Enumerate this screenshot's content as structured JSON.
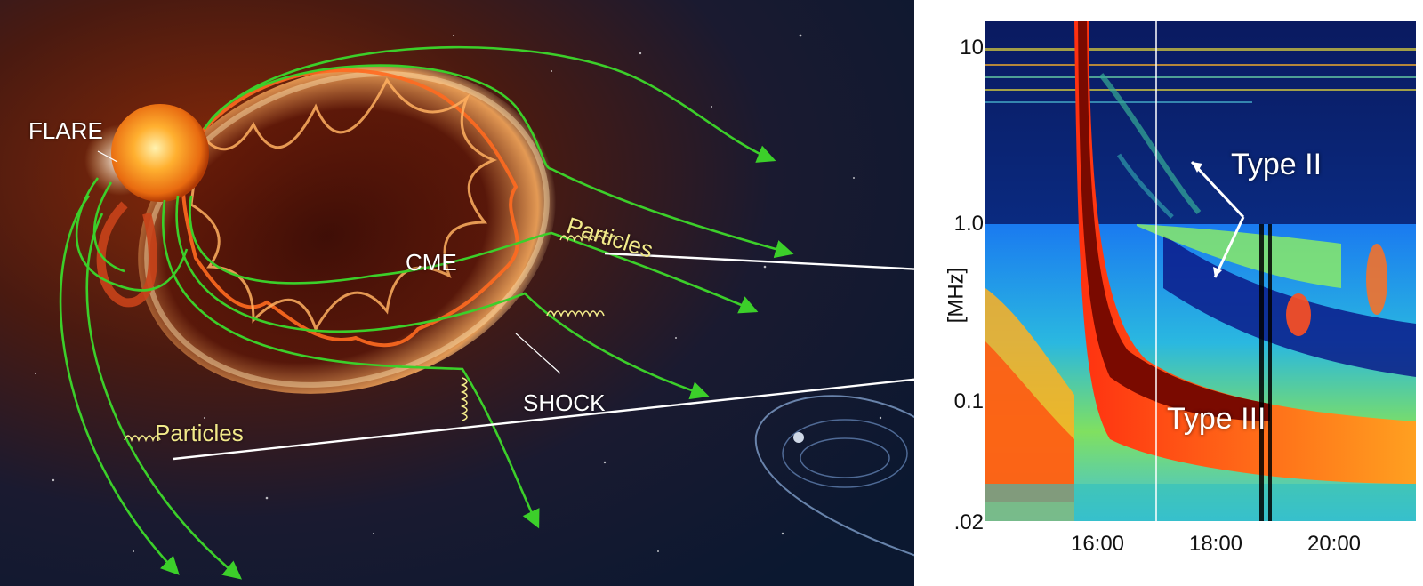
{
  "illustration": {
    "flare_label": "FLARE",
    "cme_label": "CME",
    "shock_label": "SHOCK",
    "particles_label_upper": "Particles",
    "particles_label_lower": "Particles"
  },
  "spectrogram": {
    "y_unit": "[MHz]",
    "y_ticks": [
      "10",
      "1.0",
      "0.1",
      ".02"
    ],
    "x_ticks": [
      "16:00",
      "18:00",
      "20:00"
    ],
    "type2_label": "Type II",
    "type3_label": "Type III"
  },
  "colors": {
    "field_lines": "#3ccf2a",
    "annotation_arrows": "#ffffff",
    "particle_label": "#f2ea8a"
  }
}
